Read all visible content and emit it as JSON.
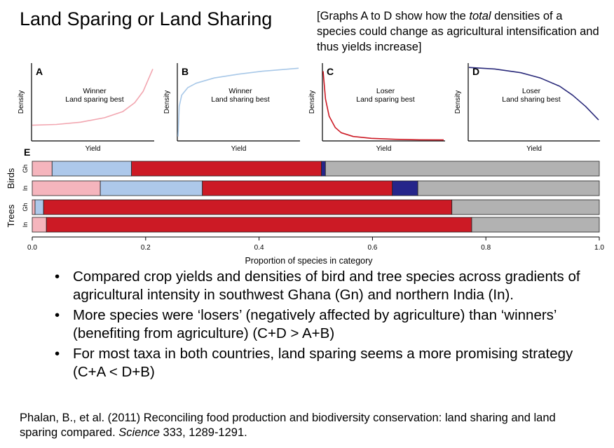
{
  "slide": {
    "title": "Land Sparing or Land Sharing",
    "note_before": "[Graphs A to D show how the ",
    "note_em": "total",
    "note_after": " densities of a species could change as agricultural intensification and thus yields increase]",
    "bullet_glyph": "•",
    "bullets": [
      "Compared crop yields and densities of bird and tree species across gradients of agricultural intensity in southwest Ghana (Gn) and northern India (In).",
      "More species were ‘losers’ (negatively affected by agriculture) than ‘winners’ (benefiting from agriculture) (C+D > A+B)",
      "For most taxa in both countries, land sparing seems a more promising strategy (C+A < D+B)"
    ],
    "citation_before": "Phalan, B., et al. (2011) Reconciling food production and biodiversity conservation: land sharing and land sparing compared. ",
    "citation_journal": "Science",
    "citation_after": " 333, 1289-1291."
  },
  "chart_data": [
    {
      "panel": "A",
      "type": "line",
      "ylabel": "Density",
      "xlabel": "Yield",
      "label_line1": "Winner",
      "label_line2": "Land sparing best",
      "color": "#f2a6b0",
      "x": [
        0,
        0.2,
        0.4,
        0.6,
        0.75,
        0.85,
        0.92,
        1.0
      ],
      "y": [
        0.2,
        0.21,
        0.24,
        0.3,
        0.38,
        0.5,
        0.65,
        0.95
      ]
    },
    {
      "panel": "B",
      "type": "line",
      "ylabel": "Density",
      "xlabel": "Yield",
      "label_line1": "Winner",
      "label_line2": "Land sharing best",
      "color": "#a8c8e8",
      "x": [
        0,
        0.01,
        0.03,
        0.08,
        0.15,
        0.3,
        0.5,
        0.7,
        0.85,
        1.0
      ],
      "y": [
        0.05,
        0.45,
        0.6,
        0.7,
        0.76,
        0.83,
        0.88,
        0.92,
        0.94,
        0.96
      ]
    },
    {
      "panel": "C",
      "type": "line",
      "ylabel": "Density",
      "xlabel": "Yield",
      "label_line1": "Loser",
      "label_line2": "Land sparing best",
      "color": "#cc1a25",
      "x": [
        0,
        0.02,
        0.05,
        0.1,
        0.15,
        0.25,
        0.4,
        0.6,
        0.8,
        1.0
      ],
      "y": [
        0.92,
        0.55,
        0.32,
        0.17,
        0.1,
        0.05,
        0.025,
        0.012,
        0.006,
        0.004
      ]
    },
    {
      "panel": "D",
      "type": "line",
      "ylabel": "Density",
      "xlabel": "Yield",
      "label_line1": "Loser",
      "label_line2": "Land sharing best",
      "color": "#2a2a7a",
      "x": [
        0,
        0.2,
        0.4,
        0.55,
        0.7,
        0.8,
        0.9,
        1.0
      ],
      "y": [
        0.97,
        0.95,
        0.9,
        0.83,
        0.72,
        0.6,
        0.45,
        0.27
      ]
    },
    {
      "panel": "E",
      "type": "bar",
      "orientation": "horizontal",
      "stacked": true,
      "xlabel": "Proportion of species in category",
      "xlim": [
        0,
        1
      ],
      "ticks": [
        0,
        0.2,
        0.4,
        0.6,
        0.8,
        1.0
      ],
      "tick_labels": [
        "0.0",
        "0.2",
        "0.4",
        "0.6",
        "0.8",
        "1.0"
      ],
      "groups": [
        {
          "name": "Birds",
          "rows": 2
        },
        {
          "name": "Trees",
          "rows": 2
        }
      ],
      "segment_colors": [
        "#f5b5bd",
        "#adc8ea",
        "#cc1a25",
        "#25258a",
        "#b2b2b2"
      ],
      "categories": [
        "Gh",
        "In",
        "Gh",
        "In"
      ],
      "series": [
        {
          "values": [
            0.035,
            0.12,
            0.005,
            0.025
          ]
        },
        {
          "values": [
            0.14,
            0.18,
            0.015,
            0.0
          ]
        },
        {
          "values": [
            0.335,
            0.335,
            0.72,
            0.75
          ]
        },
        {
          "values": [
            0.007,
            0.045,
            0.0,
            0.0
          ]
        },
        {
          "values": [
            0.483,
            0.32,
            0.26,
            0.225
          ]
        }
      ]
    }
  ]
}
